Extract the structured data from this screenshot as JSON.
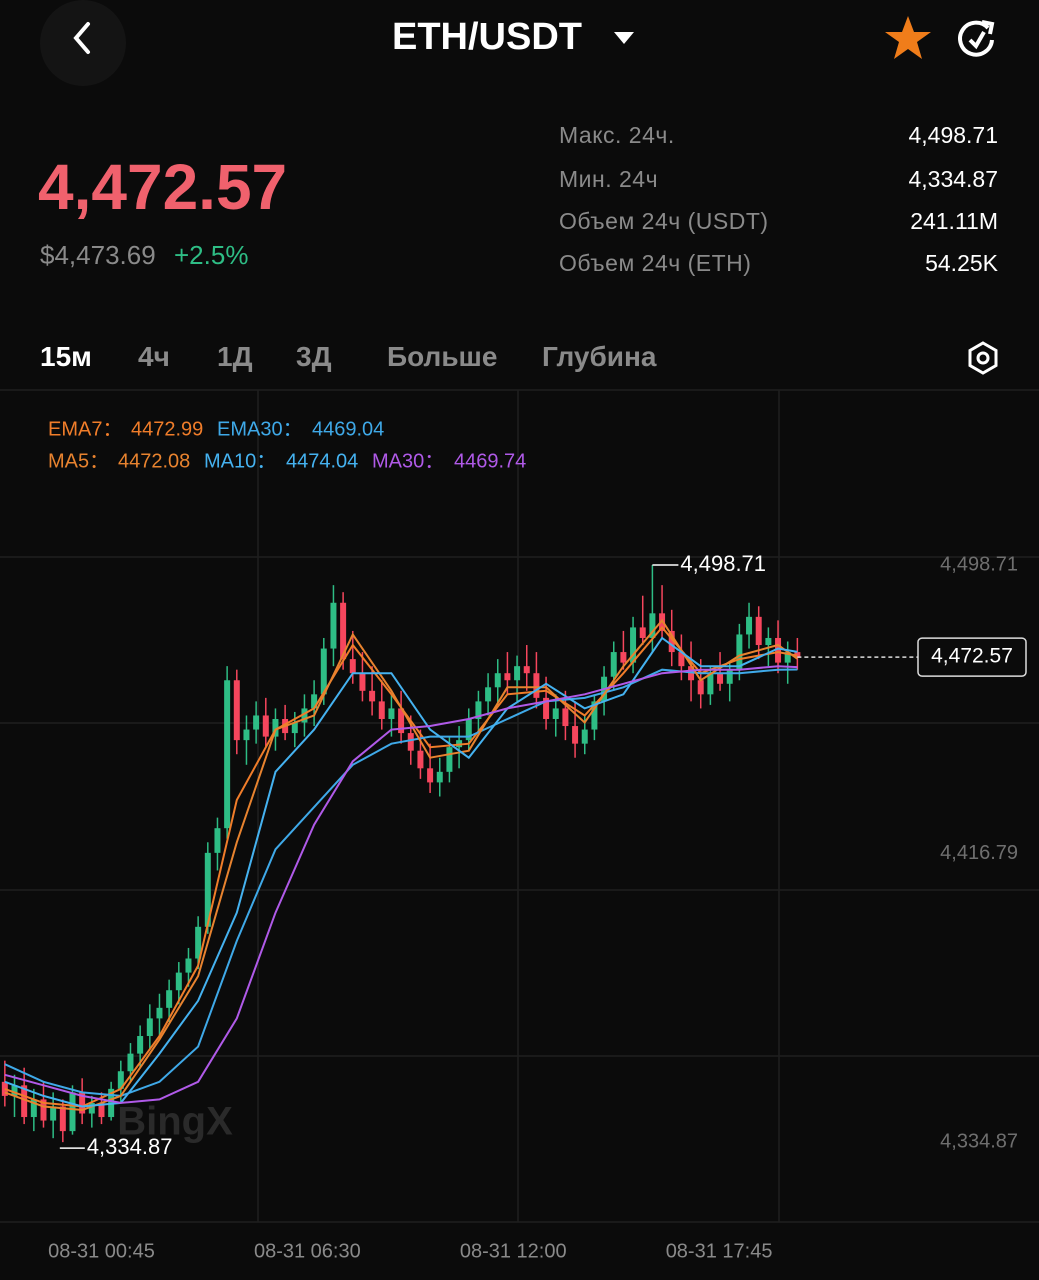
{
  "header": {
    "title": "ETH/USDT",
    "price": "4,472.57",
    "price_usd": "$4,473.69",
    "change": "+2.5%"
  },
  "stats": [
    {
      "label": "Макс. 24ч.",
      "value": "4,498.71"
    },
    {
      "label": "Мин. 24ч",
      "value": "4,334.87"
    },
    {
      "label": "Объем 24ч (USDT)",
      "value": "241.11M"
    },
    {
      "label": "Объем 24ч (ETH)",
      "value": "54.25K"
    }
  ],
  "tabs": [
    "15м",
    "4ч",
    "1Д",
    "3Д",
    "Больше",
    "Глубина"
  ],
  "chart_data": {
    "type": "candlestick",
    "watermark": "BingX",
    "up_color": "#2ebd85",
    "down_color": "#f6465d",
    "xlim": [
      -0.5,
      107
    ],
    "ylim": [
      4312.2,
      4548.4
    ],
    "yticks": [
      {
        "value": 4498.71,
        "label": "4,498.71"
      },
      {
        "value": 4416.79,
        "label": "4,416.79"
      },
      {
        "value": 4334.87,
        "label": "4,334.87"
      }
    ],
    "xticks": [
      {
        "value": 10,
        "label": "08-31 00:45"
      },
      {
        "value": 31.3,
        "label": "08-31 06:30"
      },
      {
        "value": 52.6,
        "label": "08-31 12:00"
      },
      {
        "value": 73.9,
        "label": "08-31 17:45"
      }
    ],
    "ohlc": [
      [
        4352,
        4358,
        4345,
        4348
      ],
      [
        4348,
        4354,
        4342,
        4351
      ],
      [
        4351,
        4356,
        4340,
        4342
      ],
      [
        4342,
        4350,
        4338,
        4347
      ],
      [
        4347,
        4352,
        4339,
        4341
      ],
      [
        4341,
        4349,
        4336,
        4345
      ],
      [
        4345,
        4347,
        4334.87,
        4338
      ],
      [
        4338,
        4351,
        4337,
        4349
      ],
      [
        4349,
        4353,
        4340,
        4343
      ],
      [
        4343,
        4348,
        4339,
        4346
      ],
      [
        4346,
        4349,
        4340,
        4342
      ],
      [
        4342,
        4352,
        4341,
        4350
      ],
      [
        4350,
        4358,
        4346,
        4355
      ],
      [
        4355,
        4363,
        4352,
        4360
      ],
      [
        4360,
        4368,
        4356,
        4365
      ],
      [
        4365,
        4374,
        4361,
        4370
      ],
      [
        4370,
        4377,
        4364,
        4373
      ],
      [
        4373,
        4381,
        4369,
        4378
      ],
      [
        4378,
        4386,
        4374,
        4383
      ],
      [
        4383,
        4390,
        4379,
        4387
      ],
      [
        4387,
        4399,
        4384,
        4396
      ],
      [
        4396,
        4420,
        4394,
        4417
      ],
      [
        4417,
        4427,
        4412,
        4424
      ],
      [
        4424,
        4470,
        4421,
        4466
      ],
      [
        4466,
        4469,
        4445,
        4449
      ],
      [
        4449,
        4456,
        4442,
        4452
      ],
      [
        4452,
        4460,
        4448,
        4456
      ],
      [
        4456,
        4461,
        4447,
        4450
      ],
      [
        4450,
        4458,
        4446,
        4455
      ],
      [
        4455,
        4459,
        4449,
        4451
      ],
      [
        4451,
        4457,
        4447,
        4454
      ],
      [
        4454,
        4462,
        4450,
        4458
      ],
      [
        4458,
        4466,
        4453,
        4462
      ],
      [
        4462,
        4478,
        4459,
        4475
      ],
      [
        4475,
        4493,
        4470,
        4488
      ],
      [
        4488,
        4491,
        4469,
        4472
      ],
      [
        4472,
        4480,
        4465,
        4468
      ],
      [
        4468,
        4474,
        4460,
        4463
      ],
      [
        4463,
        4470,
        4456,
        4460
      ],
      [
        4460,
        4466,
        4452,
        4455
      ],
      [
        4455,
        4462,
        4450,
        4458
      ],
      [
        4458,
        4463,
        4448,
        4451
      ],
      [
        4451,
        4456,
        4442,
        4446
      ],
      [
        4446,
        4452,
        4438,
        4441
      ],
      [
        4441,
        4448,
        4434,
        4437
      ],
      [
        4437,
        4444,
        4433,
        4440
      ],
      [
        4440,
        4450,
        4437,
        4447
      ],
      [
        4447,
        4453,
        4441,
        4449
      ],
      [
        4449,
        4458,
        4446,
        4455
      ],
      [
        4455,
        4463,
        4451,
        4460
      ],
      [
        4460,
        4468,
        4456,
        4464
      ],
      [
        4464,
        4472,
        4459,
        4468
      ],
      [
        4468,
        4474,
        4462,
        4466
      ],
      [
        4466,
        4473,
        4460,
        4470
      ],
      [
        4470,
        4476,
        4463,
        4468
      ],
      [
        4468,
        4474,
        4458,
        4461
      ],
      [
        4461,
        4467,
        4452,
        4455
      ],
      [
        4455,
        4462,
        4450,
        4458
      ],
      [
        4458,
        4463,
        4449,
        4453
      ],
      [
        4453,
        4460,
        4444,
        4448
      ],
      [
        4448,
        4456,
        4445,
        4452
      ],
      [
        4452,
        4462,
        4449,
        4460
      ],
      [
        4460,
        4470,
        4456,
        4467
      ],
      [
        4467,
        4477,
        4463,
        4474
      ],
      [
        4474,
        4480,
        4469,
        4471
      ],
      [
        4471,
        4484,
        4468,
        4481
      ],
      [
        4481,
        4490,
        4476,
        4478
      ],
      [
        4478,
        4498.71,
        4474,
        4485
      ],
      [
        4485,
        4493,
        4478,
        4480
      ],
      [
        4480,
        4486,
        4470,
        4474
      ],
      [
        4474,
        4479,
        4466,
        4470
      ],
      [
        4470,
        4477,
        4460,
        4466
      ],
      [
        4466,
        4472,
        4458,
        4462
      ],
      [
        4462,
        4470,
        4459,
        4468
      ],
      [
        4468,
        4474,
        4463,
        4465
      ],
      [
        4465,
        4471,
        4460,
        4469
      ],
      [
        4469,
        4482,
        4466,
        4479
      ],
      [
        4479,
        4488,
        4475,
        4484
      ],
      [
        4484,
        4487,
        4472,
        4476
      ],
      [
        4476,
        4481,
        4470,
        4478
      ],
      [
        4478,
        4483,
        4468,
        4471
      ],
      [
        4471,
        4477,
        4465,
        4474
      ],
      [
        4474,
        4478,
        4469,
        4472.57
      ]
    ],
    "x": [
      0,
      4,
      8,
      12,
      16,
      20,
      24,
      28,
      32,
      36,
      40,
      44,
      48,
      52,
      56,
      60,
      64,
      68,
      72,
      76,
      80,
      82
    ],
    "series": [
      {
        "name": "EMA7：",
        "color": "#f07d2a",
        "legend_value": 4472.99,
        "values": [
          4350,
          4346,
          4345,
          4350,
          4365,
          4385,
          4432,
          4452,
          4458,
          4476,
          4462,
          4447,
          4448,
          4462,
          4463,
          4456,
          4468,
          4481,
          4468,
          4472,
          4474,
          4472.99
        ]
      },
      {
        "name": "EMA30：",
        "color": "#3fa9e8",
        "legend_value": 4469.04,
        "values": [
          4357,
          4352,
          4349,
          4348,
          4352,
          4362,
          4392,
          4418,
          4430,
          4442,
          4448,
          4450,
          4450,
          4455,
          4460,
          4461,
          4464,
          4469,
          4468,
          4468,
          4469,
          4469.04
        ]
      },
      {
        "name": "MA5：",
        "color": "#e8832f",
        "legend_value": 4472.08,
        "values": [
          4349,
          4345,
          4344,
          4348,
          4364,
          4382,
          4420,
          4452,
          4456,
          4479,
          4463,
          4444,
          4446,
          4464,
          4464,
          4454,
          4470,
          4483,
          4466,
          4473,
          4476,
          4472.08
        ]
      },
      {
        "name": "MA10：",
        "color": "#45b2f0",
        "legend_value": 4474.04,
        "values": [
          4352,
          4348,
          4345,
          4346,
          4360,
          4375,
          4400,
          4440,
          4452,
          4468,
          4468,
          4452,
          4444,
          4458,
          4465,
          4458,
          4462,
          4478,
          4470,
          4470,
          4475,
          4474.04
        ]
      },
      {
        "name": "MA30：",
        "color": "#b05ae8",
        "legend_value": 4469.74,
        "values": [
          4354,
          4351,
          4348,
          4346,
          4347,
          4352,
          4370,
          4400,
          4425,
          4443,
          4452,
          4453,
          4455,
          4458,
          4460,
          4462,
          4465,
          4468,
          4469,
          4469,
          4470,
          4469.74
        ]
      }
    ],
    "annotations": {
      "high": {
        "index": 67,
        "value": 4498.71,
        "label": "4,498.71"
      },
      "low": {
        "index": 6,
        "value": 4334.87,
        "label": "4,334.87"
      },
      "last": {
        "index": 82,
        "value": 4472.57,
        "label": "4,472.57"
      }
    }
  }
}
